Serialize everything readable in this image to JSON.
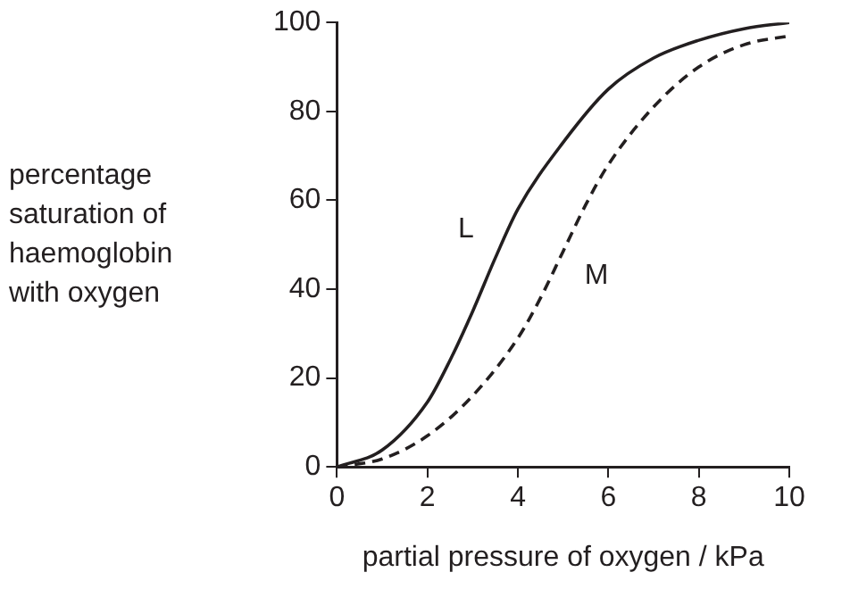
{
  "chart_data": {
    "type": "line",
    "xlabel": "partial pressure of oxygen / kPa",
    "ylabel": "percentage saturation of haemoglobin with oxygen",
    "xlim": [
      0,
      10
    ],
    "ylim": [
      0,
      100
    ],
    "xticks": [
      0,
      2,
      4,
      6,
      8,
      10
    ],
    "yticks": [
      0,
      20,
      40,
      60,
      80,
      100
    ],
    "grid": false,
    "legend": false,
    "marker": "none",
    "series": [
      {
        "name": "L",
        "color": "#231f20",
        "line_style": "solid",
        "x": [
          0,
          1,
          2,
          2.5,
          3,
          3.5,
          4,
          5,
          6,
          7,
          8,
          9,
          10
        ],
        "values": [
          0,
          3.8,
          14.6,
          24,
          35,
          47,
          58,
          73,
          85,
          92,
          96,
          98.6,
          100
        ]
      },
      {
        "name": "M",
        "color": "#231f20",
        "line_style": "dashed",
        "x": [
          0,
          1,
          2,
          3,
          4,
          4.5,
          5,
          5.5,
          6,
          7,
          8,
          9,
          10
        ],
        "values": [
          0,
          1.8,
          7,
          16,
          29,
          38,
          48.5,
          59,
          68,
          81,
          90,
          95,
          97
        ]
      }
    ]
  }
}
